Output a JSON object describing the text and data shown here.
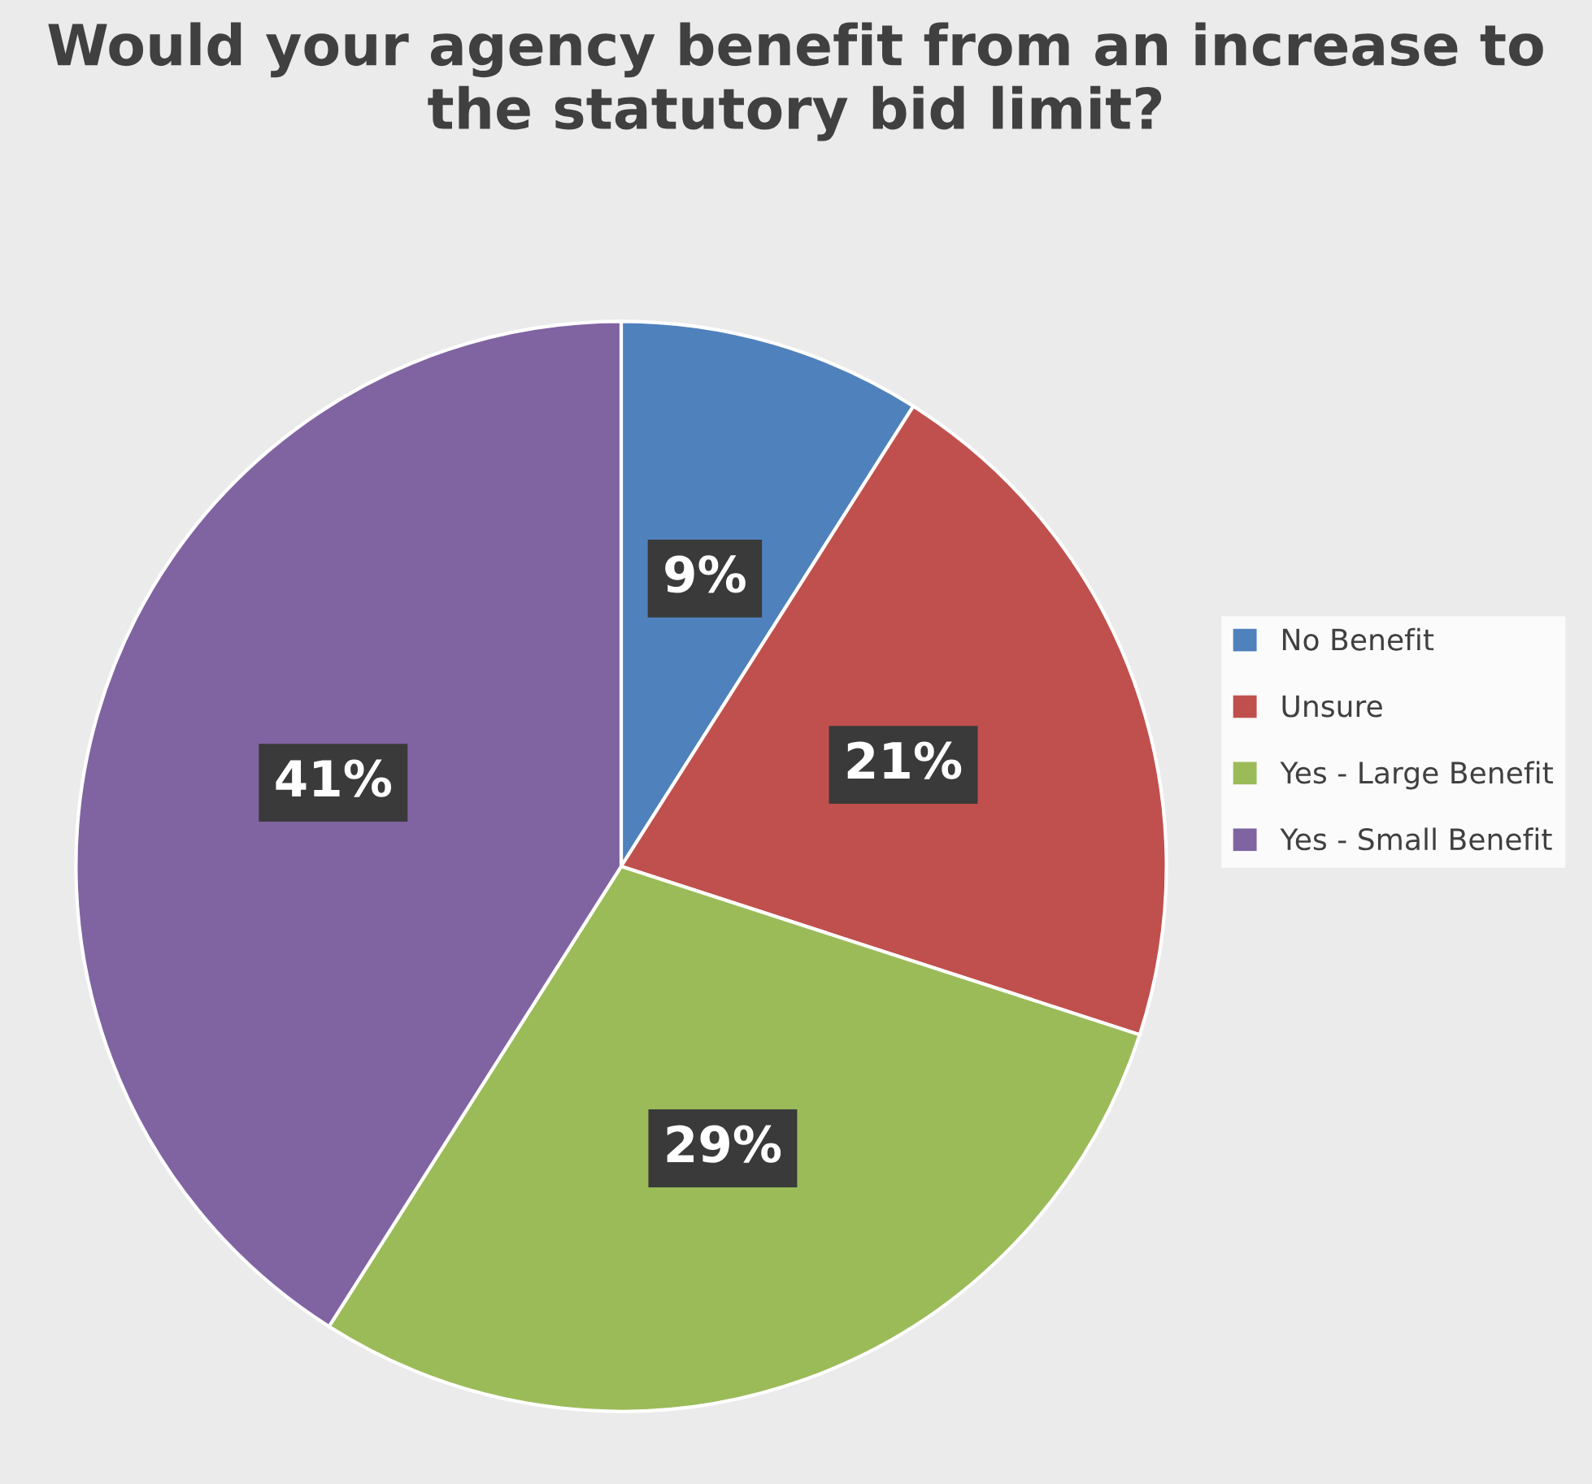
{
  "chart_data": {
    "type": "pie",
    "title": "Would your agency benefit from an increase to the statutory bid limit?",
    "categories": [
      "No Benefit",
      "Unsure",
      "Yes - Large Benefit",
      "Yes - Small Benefit"
    ],
    "values": [
      9,
      21,
      29,
      41
    ],
    "colors": [
      "#4f81bd",
      "#c0504d",
      "#9bbb59",
      "#8064a2"
    ],
    "value_labels": [
      "9%",
      "21%",
      "29%",
      "41%"
    ],
    "legend": "right"
  }
}
